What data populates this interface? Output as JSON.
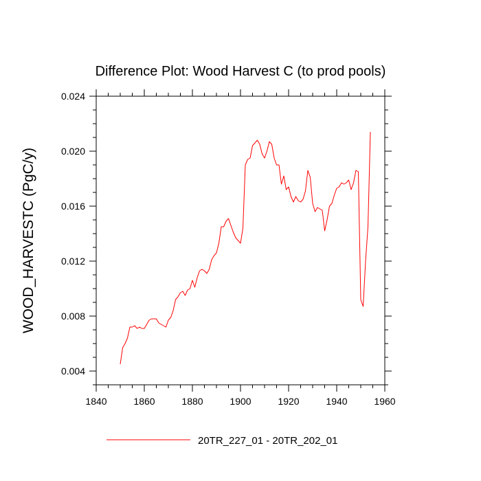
{
  "chart_data": {
    "type": "line",
    "title": "Difference Plot: Wood Harvest C (to prod pools)",
    "xlabel": "",
    "ylabel": "WOOD_HARVESTC  (PgC/y)",
    "xlim": [
      1840,
      1960
    ],
    "ylim": [
      0.003,
      0.024
    ],
    "x_major_ticks": [
      1840,
      1860,
      1880,
      1900,
      1920,
      1940,
      1960
    ],
    "x_tick_labels": [
      "1840",
      "1860",
      "1880",
      "1900",
      "1920",
      "1940",
      "1960"
    ],
    "y_major_ticks": [
      0.004,
      0.008,
      0.012,
      0.016,
      0.02,
      0.024
    ],
    "y_tick_labels": [
      "0.004",
      "0.008",
      "0.012",
      "0.016",
      "0.020",
      "0.024"
    ],
    "grid": false,
    "legend_position": "bottom-center",
    "series": [
      {
        "name": "20TR_227_01 - 20TR_202_01",
        "color": "#ff0000",
        "x": [
          1850,
          1851,
          1852,
          1853,
          1854,
          1855,
          1856,
          1857,
          1858,
          1859,
          1860,
          1861,
          1862,
          1863,
          1864,
          1865,
          1866,
          1867,
          1868,
          1869,
          1870,
          1871,
          1872,
          1873,
          1874,
          1875,
          1876,
          1877,
          1878,
          1879,
          1880,
          1881,
          1882,
          1883,
          1884,
          1885,
          1886,
          1887,
          1888,
          1889,
          1890,
          1891,
          1892,
          1893,
          1894,
          1895,
          1896,
          1897,
          1898,
          1899,
          1900,
          1901,
          1902,
          1903,
          1904,
          1905,
          1906,
          1907,
          1908,
          1909,
          1910,
          1911,
          1912,
          1913,
          1914,
          1915,
          1916,
          1917,
          1918,
          1919,
          1920,
          1921,
          1922,
          1923,
          1924,
          1925,
          1926,
          1927,
          1928,
          1929,
          1930,
          1931,
          1932,
          1933,
          1934,
          1935,
          1936,
          1937,
          1938,
          1939,
          1940,
          1941,
          1942,
          1943,
          1944,
          1945,
          1946,
          1947,
          1948,
          1949,
          1950,
          1951,
          1952,
          1953,
          1954
        ],
        "values": [
          0.0045,
          0.0057,
          0.006,
          0.0064,
          0.0072,
          0.0072,
          0.0073,
          0.0071,
          0.0072,
          0.0071,
          0.0071,
          0.0074,
          0.0077,
          0.0078,
          0.0078,
          0.0078,
          0.0075,
          0.0074,
          0.0073,
          0.0072,
          0.0077,
          0.0079,
          0.0084,
          0.0092,
          0.0094,
          0.0097,
          0.0098,
          0.0095,
          0.0099,
          0.01,
          0.0106,
          0.0101,
          0.0108,
          0.0113,
          0.0114,
          0.0113,
          0.0111,
          0.0114,
          0.0121,
          0.0124,
          0.0126,
          0.0133,
          0.0145,
          0.0145,
          0.0149,
          0.0151,
          0.0146,
          0.0141,
          0.0137,
          0.0135,
          0.0133,
          0.0144,
          0.019,
          0.0194,
          0.0195,
          0.0204,
          0.0206,
          0.0208,
          0.0205,
          0.0198,
          0.0195,
          0.02,
          0.0207,
          0.0205,
          0.0195,
          0.019,
          0.019,
          0.0176,
          0.0182,
          0.0172,
          0.0174,
          0.0167,
          0.0163,
          0.0167,
          0.0164,
          0.0163,
          0.0165,
          0.0171,
          0.0186,
          0.0181,
          0.0162,
          0.0156,
          0.0159,
          0.0158,
          0.0157,
          0.0142,
          0.015,
          0.016,
          0.0162,
          0.0168,
          0.0173,
          0.0174,
          0.0177,
          0.0176,
          0.0177,
          0.0179,
          0.0172,
          0.0177,
          0.0186,
          0.0185,
          0.0092,
          0.0087,
          0.012,
          0.0145,
          0.0214
        ]
      }
    ]
  }
}
